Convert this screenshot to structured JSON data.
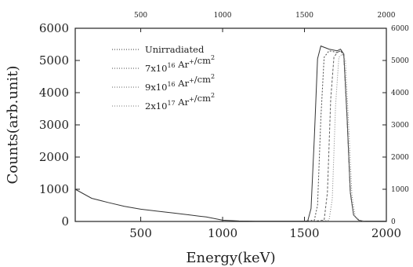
{
  "chart_data": {
    "type": "line",
    "title": "",
    "xlabel": "Energy(keV)",
    "ylabel": "Counts(arb.unit)",
    "xlim": [
      100,
      2000
    ],
    "ylim": [
      0,
      6000
    ],
    "bottom_ticks": [
      500,
      1000,
      1500,
      2000
    ],
    "top_ticks": [
      500,
      1000,
      1500,
      2000
    ],
    "left_ticks": [
      0,
      1000,
      2000,
      3000,
      4000,
      5000,
      6000
    ],
    "right_ticks": [
      0,
      1000,
      2000,
      3000,
      4000,
      5000,
      6000
    ],
    "grid": false,
    "legend_position": "upper-left",
    "series": [
      {
        "name": "Unirradiated",
        "x": [
          100,
          200,
          300,
          400,
          500,
          600,
          700,
          800,
          900,
          1000,
          1100,
          1200,
          1300,
          1400,
          1500,
          1520,
          1540,
          1560,
          1580,
          1600,
          1650,
          1700,
          1720,
          1740,
          1760,
          1780,
          1800,
          1830,
          1860,
          2000
        ],
        "y": [
          1000,
          720,
          590,
          470,
          380,
          320,
          260,
          200,
          140,
          40,
          15,
          10,
          10,
          10,
          10,
          20,
          400,
          2600,
          5050,
          5450,
          5350,
          5300,
          5350,
          5200,
          3200,
          900,
          200,
          40,
          10,
          10
        ]
      },
      {
        "name": "7x10^16 Ar+/cm2",
        "x": [
          1500,
          1560,
          1580,
          1600,
          1620,
          1650,
          1700,
          1720,
          1740,
          1760,
          1780,
          1800,
          1830,
          1860
        ],
        "y": [
          10,
          40,
          500,
          3200,
          5100,
          5300,
          5250,
          5300,
          5150,
          3200,
          900,
          200,
          40,
          10
        ]
      },
      {
        "name": "9x10^16 Ar+/cm2",
        "x": [
          1550,
          1620,
          1640,
          1660,
          1680,
          1700,
          1720,
          1740,
          1760,
          1780,
          1800,
          1830,
          1860
        ],
        "y": [
          10,
          40,
          900,
          3800,
          5100,
          5250,
          5300,
          5200,
          3300,
          900,
          200,
          40,
          10
        ]
      },
      {
        "name": "2x10^17 Ar+/cm2",
        "x": [
          1600,
          1650,
          1670,
          1690,
          1710,
          1730,
          1750,
          1770,
          1790,
          1810,
          1840,
          1870
        ],
        "y": [
          10,
          40,
          700,
          3600,
          5100,
          5200,
          5000,
          3000,
          800,
          150,
          30,
          10
        ]
      }
    ]
  },
  "legend": [
    {
      "base": "Unirradiated",
      "sup1": "",
      "mid": "",
      "sup2": "",
      "tail": ""
    },
    {
      "base": "7x10",
      "sup1": "16",
      "mid": " Ar",
      "sup2": "+",
      "tail": "/cm",
      "sup3": "2"
    },
    {
      "base": "9x10",
      "sup1": "16",
      "mid": " Ar",
      "sup2": "+",
      "tail": "/cm",
      "sup3": "2"
    },
    {
      "base": "2x10",
      "sup1": "17",
      "mid": " Ar",
      "sup2": "+",
      "tail": "/cm",
      "sup3": "2"
    }
  ],
  "colors": {
    "axis": "#222222",
    "unirradiated": "#333333",
    "series2": "#4a4a4a",
    "series3": "#606060",
    "series4": "#7a7a7a"
  }
}
